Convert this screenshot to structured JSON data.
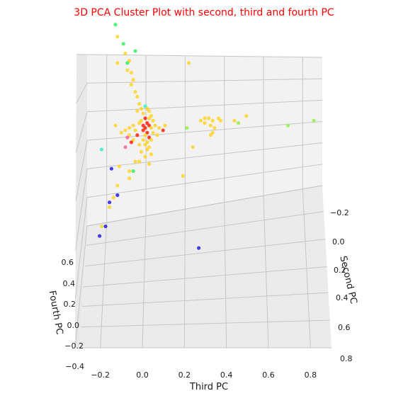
{
  "chart_data": {
    "type": "scatter",
    "projection": "3d",
    "title": "3D PCA Cluster Plot with second, third and fourth PC",
    "title_color": "#ff0000",
    "xlabel": "Third PC",
    "ylabel": "Second PC",
    "zlabel": "Fourth PC",
    "x_ticks": [
      "−0.2",
      "0.0",
      "0.2",
      "0.4",
      "0.6",
      "0.8"
    ],
    "y_ticks": [
      "−0.2",
      "0.0",
      "0.2",
      "0.4",
      "0.6",
      "0.8"
    ],
    "z_ticks": [
      "−0.4",
      "−0.2",
      "0.0",
      "0.2",
      "0.4",
      "0.6"
    ],
    "xlim": [
      -0.3,
      0.9
    ],
    "zlim": [
      -0.4,
      0.7
    ],
    "grid": true,
    "colors": {
      "yellow": "#ffd21f",
      "red": "#ff1500",
      "blue": "#1a10e8",
      "green": "#28f05a",
      "lime": "#8cf03c",
      "cyan": "#28f0c8",
      "pink": "#ff5a9a"
    },
    "points": [
      {
        "x": -0.21,
        "z": 0.98,
        "c": "green"
      },
      {
        "x": -0.15,
        "z": 0.86,
        "c": "green"
      },
      {
        "x": -0.14,
        "z": 0.81,
        "c": "yellow"
      },
      {
        "x": -0.11,
        "z": 0.78,
        "c": "green"
      },
      {
        "x": -0.05,
        "z": 0.75,
        "c": "green"
      },
      {
        "x": -0.1,
        "z": 0.74,
        "c": "yellow"
      },
      {
        "x": -0.08,
        "z": 0.71,
        "c": "yellow"
      },
      {
        "x": -0.09,
        "z": 0.7,
        "c": "green"
      },
      {
        "x": -0.14,
        "z": 0.7,
        "c": "yellow"
      },
      {
        "x": -0.09,
        "z": 0.67,
        "c": "yellow"
      },
      {
        "x": -0.07,
        "z": 0.66,
        "c": "yellow"
      },
      {
        "x": -0.06,
        "z": 0.63,
        "c": "yellow"
      },
      {
        "x": -0.07,
        "z": 0.61,
        "c": "yellow"
      },
      {
        "x": -0.05,
        "z": 0.58,
        "c": "yellow"
      },
      {
        "x": -0.04,
        "z": 0.56,
        "c": "yellow"
      },
      {
        "x": 0.22,
        "z": 0.7,
        "c": "yellow"
      },
      {
        "x": -0.03,
        "z": 0.53,
        "c": "yellow"
      },
      {
        "x": -0.02,
        "z": 0.51,
        "c": "yellow"
      },
      {
        "x": 0.0,
        "z": 0.52,
        "c": "cyan"
      },
      {
        "x": 0.01,
        "z": 0.51,
        "c": "yellow"
      },
      {
        "x": 0.02,
        "z": 0.5,
        "c": "yellow"
      },
      {
        "x": -0.01,
        "z": 0.49,
        "c": "yellow"
      },
      {
        "x": -0.04,
        "z": 0.5,
        "c": "yellow"
      },
      {
        "x": 0.03,
        "z": 0.48,
        "c": "yellow"
      },
      {
        "x": 0.0,
        "z": 0.47,
        "c": "red"
      },
      {
        "x": 0.02,
        "z": 0.47,
        "c": "yellow"
      },
      {
        "x": -0.02,
        "z": 0.46,
        "c": "yellow"
      },
      {
        "x": 0.04,
        "z": 0.46,
        "c": "yellow"
      },
      {
        "x": 0.01,
        "z": 0.45,
        "c": "red"
      },
      {
        "x": -0.03,
        "z": 0.45,
        "c": "yellow"
      },
      {
        "x": -0.01,
        "z": 0.44,
        "c": "red"
      },
      {
        "x": 0.02,
        "z": 0.44,
        "c": "red"
      },
      {
        "x": 0.05,
        "z": 0.44,
        "c": "yellow"
      },
      {
        "x": -0.15,
        "z": 0.44,
        "c": "yellow"
      },
      {
        "x": -0.06,
        "z": 0.44,
        "c": "yellow"
      },
      {
        "x": -0.08,
        "z": 0.43,
        "c": "yellow"
      },
      {
        "x": 0.0,
        "z": 0.43,
        "c": "red"
      },
      {
        "x": 0.03,
        "z": 0.43,
        "c": "yellow"
      },
      {
        "x": 0.1,
        "z": 0.44,
        "c": "yellow"
      },
      {
        "x": 0.07,
        "z": 0.43,
        "c": "yellow"
      },
      {
        "x": -0.1,
        "z": 0.42,
        "c": "yellow"
      },
      {
        "x": -0.05,
        "z": 0.42,
        "c": "yellow"
      },
      {
        "x": -0.01,
        "z": 0.42,
        "c": "red"
      },
      {
        "x": 0.01,
        "z": 0.41,
        "c": "red"
      },
      {
        "x": 0.04,
        "z": 0.41,
        "c": "yellow"
      },
      {
        "x": 0.09,
        "z": 0.42,
        "c": "red"
      },
      {
        "x": -0.12,
        "z": 0.41,
        "c": "yellow"
      },
      {
        "x": -0.08,
        "z": 0.4,
        "c": "yellow"
      },
      {
        "x": -0.04,
        "z": 0.4,
        "c": "red"
      },
      {
        "x": 0.0,
        "z": 0.4,
        "c": "yellow"
      },
      {
        "x": 0.02,
        "z": 0.39,
        "c": "red"
      },
      {
        "x": 0.06,
        "z": 0.4,
        "c": "yellow"
      },
      {
        "x": -0.09,
        "z": 0.39,
        "c": "pink"
      },
      {
        "x": -0.06,
        "z": 0.38,
        "c": "yellow"
      },
      {
        "x": -0.01,
        "z": 0.38,
        "c": "yellow"
      },
      {
        "x": 0.01,
        "z": 0.37,
        "c": "yellow"
      },
      {
        "x": 0.03,
        "z": 0.38,
        "c": "yellow"
      },
      {
        "x": -0.07,
        "z": 0.37,
        "c": "red"
      },
      {
        "x": -0.03,
        "z": 0.36,
        "c": "yellow"
      },
      {
        "x": 0.0,
        "z": 0.36,
        "c": "yellow"
      },
      {
        "x": 0.02,
        "z": 0.35,
        "c": "yellow"
      },
      {
        "x": -0.1,
        "z": 0.35,
        "c": "pink"
      },
      {
        "x": 0.01,
        "z": 0.34,
        "c": "yellow"
      },
      {
        "x": -0.02,
        "z": 0.33,
        "c": "yellow"
      },
      {
        "x": 0.03,
        "z": 0.32,
        "c": "yellow"
      },
      {
        "x": 0.0,
        "z": 0.31,
        "c": "yellow"
      },
      {
        "x": 0.24,
        "z": 0.35,
        "c": "yellow"
      },
      {
        "x": -0.05,
        "z": 0.29,
        "c": "yellow"
      },
      {
        "x": -0.03,
        "z": 0.29,
        "c": "yellow"
      },
      {
        "x": 0.02,
        "z": 0.28,
        "c": "yellow"
      },
      {
        "x": -0.13,
        "z": 0.27,
        "c": "yellow"
      },
      {
        "x": -0.08,
        "z": 0.25,
        "c": "yellow"
      },
      {
        "x": -0.06,
        "z": 0.25,
        "c": "green"
      },
      {
        "x": -0.08,
        "z": 0.22,
        "c": "yellow"
      },
      {
        "x": 0.19,
        "z": 0.23,
        "c": "yellow"
      },
      {
        "x": -0.14,
        "z": 0.19,
        "c": "yellow"
      },
      {
        "x": -0.16,
        "z": 0.14,
        "c": "yellow"
      },
      {
        "x": -0.18,
        "z": 0.1,
        "c": "yellow"
      },
      {
        "x": -0.22,
        "z": 0.02,
        "c": "yellow"
      },
      {
        "x": -0.22,
        "z": 0.34,
        "c": "cyan"
      },
      {
        "x": -0.17,
        "z": 0.26,
        "c": "blue"
      },
      {
        "x": -0.14,
        "z": 0.15,
        "c": "blue"
      },
      {
        "x": -0.18,
        "z": 0.12,
        "c": "blue"
      },
      {
        "x": -0.2,
        "z": 0.02,
        "c": "blue"
      },
      {
        "x": -0.23,
        "z": -0.02,
        "c": "blue"
      },
      {
        "x": 0.27,
        "z": -0.07,
        "c": "blue"
      },
      {
        "x": 0.21,
        "z": 0.43,
        "c": "lime"
      },
      {
        "x": 0.28,
        "z": 0.46,
        "c": "yellow"
      },
      {
        "x": 0.3,
        "z": 0.47,
        "c": "yellow"
      },
      {
        "x": 0.32,
        "z": 0.47,
        "c": "yellow"
      },
      {
        "x": 0.34,
        "z": 0.46,
        "c": "yellow"
      },
      {
        "x": 0.3,
        "z": 0.45,
        "c": "yellow"
      },
      {
        "x": 0.37,
        "z": 0.47,
        "c": "yellow"
      },
      {
        "x": 0.38,
        "z": 0.46,
        "c": "yellow"
      },
      {
        "x": 0.33,
        "z": 0.44,
        "c": "yellow"
      },
      {
        "x": 0.35,
        "z": 0.43,
        "c": "yellow"
      },
      {
        "x": 0.34,
        "z": 0.41,
        "c": "yellow"
      },
      {
        "x": 0.33,
        "z": 0.4,
        "c": "yellow"
      },
      {
        "x": 0.45,
        "z": 0.46,
        "c": "yellow"
      },
      {
        "x": 0.47,
        "z": 0.45,
        "c": "lime"
      },
      {
        "x": 0.51,
        "z": 0.48,
        "c": "yellow"
      },
      {
        "x": 0.72,
        "z": 0.44,
        "c": "lime"
      },
      {
        "x": 0.85,
        "z": 0.46,
        "c": "lime"
      }
    ]
  }
}
